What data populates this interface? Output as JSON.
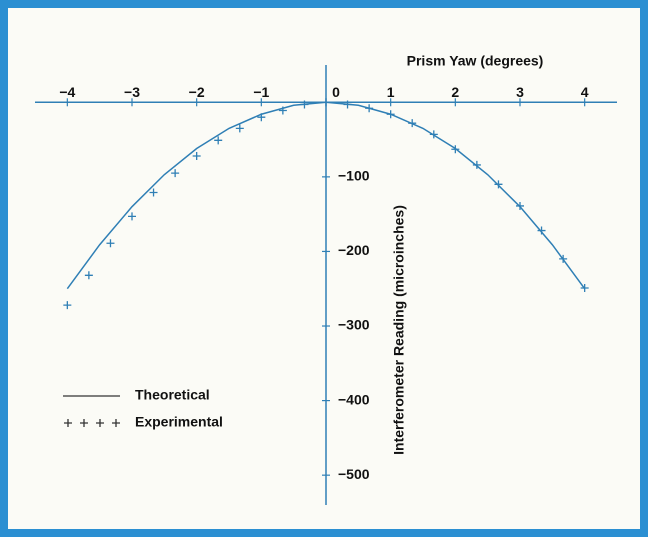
{
  "chart_data": {
    "type": "line",
    "xlabel": "Prism Yaw (degrees)",
    "ylabel": "Interferometer Reading (microinches)",
    "xlim": [
      -4.5,
      4.5
    ],
    "xticks": [
      {
        "value": -4,
        "label": "−4"
      },
      {
        "value": -3,
        "label": "−3"
      },
      {
        "value": -2,
        "label": "−2"
      },
      {
        "value": -1,
        "label": "−1"
      },
      0,
      1,
      2,
      3,
      4
    ],
    "ylim": [
      -540,
      50
    ],
    "yticks": [
      {
        "value": -100,
        "label": "−100"
      },
      {
        "value": -200,
        "label": "−200"
      },
      {
        "value": -300,
        "label": "−300"
      },
      {
        "value": -400,
        "label": "−400"
      },
      {
        "value": -500,
        "label": "−500"
      }
    ],
    "series": [
      {
        "name": "Theoretical",
        "color": "#2f7fb5",
        "marker": "none",
        "x": [
          -4,
          -3.5,
          -3,
          -2.5,
          -2,
          -1.5,
          -1,
          -0.5,
          0,
          0.5,
          1,
          1.5,
          2,
          2.5,
          3,
          3.5,
          4
        ],
        "values": [
          -250,
          -191,
          -140,
          -97,
          -62,
          -35,
          -16,
          -4,
          0,
          -4,
          -16,
          -35,
          -62,
          -97,
          -140,
          -191,
          -250
        ]
      },
      {
        "name": "Experimental",
        "color": "#2f7fb5",
        "marker": "+",
        "x": [
          -4,
          -3.667,
          -3.333,
          -3,
          -2.667,
          -2.333,
          -2,
          -1.667,
          -1.333,
          -1,
          -0.667,
          -0.333,
          0,
          0.333,
          0.667,
          1,
          1.333,
          1.667,
          2,
          2.333,
          2.667,
          3,
          3.333,
          3.667,
          4
        ],
        "values": [
          -272,
          -232,
          -189,
          -153,
          -121,
          -95,
          -72,
          -51,
          -35,
          -20,
          -11,
          -3,
          0,
          -3,
          -8,
          -16,
          -28,
          -43,
          -63,
          -84,
          -110,
          -139,
          -172,
          -210,
          -249
        ]
      }
    ]
  }
}
